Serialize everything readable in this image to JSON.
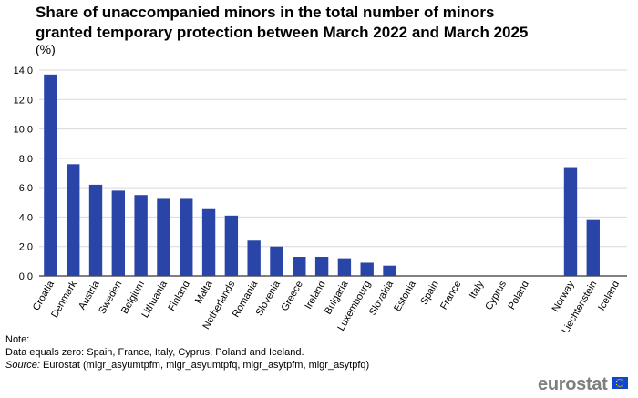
{
  "header": {
    "title": "Share of unaccompanied minors in the total number of minors granted temporary protection between March 2022 and March 2025",
    "unit": "(%)"
  },
  "chart_data": {
    "type": "bar",
    "title": "Share of unaccompanied minors in the total number of minors granted temporary protection between March 2022 and March 2025",
    "subtitle": "(%)",
    "categories": [
      "Croatia",
      "Denmark",
      "Austria",
      "Sweden",
      "Belgium",
      "Lithuania",
      "Finland",
      "Malta",
      "Netherlands",
      "Romania",
      "Slovenia",
      "Greece",
      "Ireland",
      "Bulgaria",
      "Luxembourg",
      "Slovakia",
      "Estonia",
      "Spain",
      "France",
      "Italy",
      "Cyprus",
      "Poland",
      "Norway",
      "Liechtenstein",
      "Iceland"
    ],
    "values": [
      13.7,
      7.6,
      6.2,
      5.8,
      5.5,
      5.3,
      5.3,
      4.6,
      4.1,
      2.4,
      2.0,
      1.3,
      1.3,
      1.2,
      0.9,
      0.7,
      0.0,
      0.0,
      0.0,
      0.0,
      0.0,
      0.0,
      7.4,
      3.8,
      0.0
    ],
    "group_gap_before": "Norway",
    "ylim": [
      0,
      14
    ],
    "yticks": [
      "0.0",
      "2.0",
      "4.0",
      "6.0",
      "8.0",
      "10.0",
      "12.0",
      "14.0"
    ],
    "xlabel": "",
    "ylabel": "",
    "grid": true,
    "bar_color": "#2a45a8",
    "grid_color": "#d9d9d9"
  },
  "notes": {
    "note_label": "Note:",
    "note_text": "Data equals zero: Spain, France, Italy, Cyprus, Poland and Iceland.",
    "source_label": "Source:",
    "source_text": " Eurostat (migr_asyumtpfm, migr_asyumtpfq, migr_asytpfm, migr_asytpfq)"
  },
  "logo": {
    "text": "eurostat",
    "flag_color": "#0e47cb",
    "star_color": "#ffd617"
  }
}
